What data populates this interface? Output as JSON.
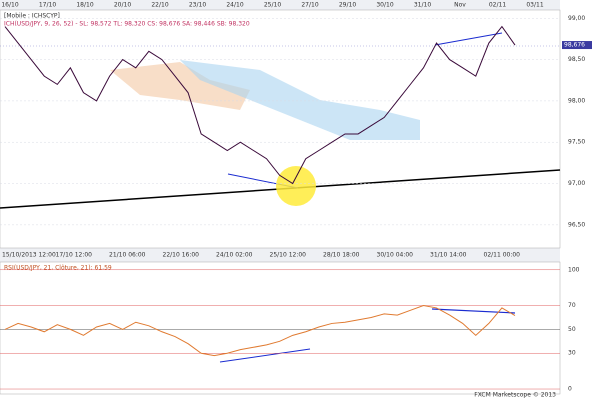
{
  "top_labels": [
    "16/10",
    "17/10",
    "18/10",
    "20/10",
    "22/10",
    "23/10",
    "24/10",
    "25/10",
    "27/10",
    "29/10",
    "30/10",
    "31/10",
    "Nov",
    "02/11",
    "03/11"
  ],
  "bottom_labels": [
    "15/10/2013 12:00",
    "17/10 12:00",
    "21/10 06:00",
    "22/10 16:00",
    "24/10 02:00",
    "25/10 12:00",
    "28/10 18:00",
    "30/10 04:00",
    "31/10 14:00",
    "02/11 00:00"
  ],
  "footer": "FXCM Marketscope © 2013",
  "chart_data": [
    {
      "type": "line",
      "title": "[Mobile : ICHSCYP]",
      "subtitle": "ICH(USD/JPY, 9, 26, 52) - SL: 98,572   TL: 98,320   CS: 98,676   SA: 98,446   SB: 98,320",
      "color": "#3a0a3a",
      "values": [
        98.9,
        98.7,
        98.5,
        98.3,
        98.2,
        98.4,
        98.1,
        98.0,
        98.3,
        98.5,
        98.4,
        98.6,
        98.5,
        98.3,
        98.1,
        97.6,
        97.5,
        97.4,
        97.5,
        97.4,
        97.3,
        97.1,
        97.0,
        97.3,
        97.4,
        97.5,
        97.6,
        97.6,
        97.7,
        97.8,
        98.0,
        98.2,
        98.4,
        98.7,
        98.5,
        98.4,
        98.3,
        98.7,
        98.9,
        98.676
      ],
      "value_labels": [
        null,
        null,
        null,
        null,
        null,
        null,
        null,
        null,
        null,
        null,
        null,
        null,
        null,
        null,
        null,
        null,
        null,
        null,
        null,
        null,
        null,
        null,
        null,
        null,
        null,
        null,
        null,
        null,
        null,
        null,
        null,
        null,
        null,
        null,
        null,
        null,
        null,
        null,
        null,
        "98,676"
      ],
      "ylim": [
        96.22,
        99.1
      ],
      "yticks": [
        {
          "value": 99,
          "label": "99,00"
        },
        {
          "value": 98.5,
          "label": "98,50"
        },
        {
          "value": 98,
          "label": "98,00"
        },
        {
          "value": 97.5,
          "label": "97,50"
        },
        {
          "value": 97,
          "label": "97,00"
        },
        {
          "value": 96.5,
          "label": "96,50"
        }
      ]
    },
    {
      "type": "line",
      "title": "RSI(USD/JPY, 21, Clôture, 21): 61,59",
      "color": "#e07a30",
      "values": [
        50,
        55,
        52,
        48,
        54,
        50,
        45,
        52,
        55,
        50,
        56,
        53,
        48,
        44,
        38,
        30,
        28,
        30,
        33,
        35,
        37,
        40,
        45,
        48,
        52,
        55,
        56,
        58,
        60,
        63,
        62,
        66,
        70,
        68,
        62,
        55,
        45,
        55,
        68,
        61.59
      ],
      "ylim": [
        -2.5,
        104
      ],
      "yticks": [
        100,
        70,
        50,
        30,
        0
      ]
    }
  ]
}
